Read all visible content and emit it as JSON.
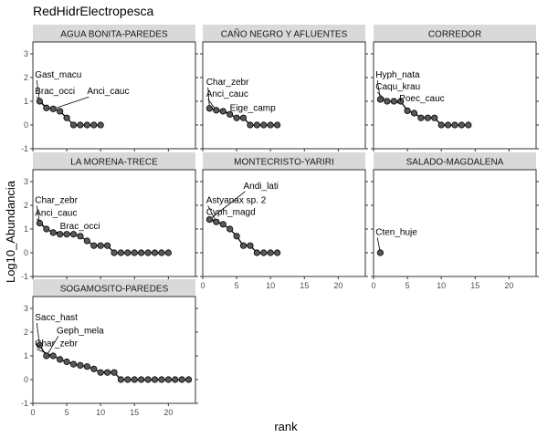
{
  "chart_data": {
    "type": "line",
    "title": "RedHidrElectropesca",
    "xlabel": "rank",
    "ylabel": "Log10_Abundancia",
    "xlim": [
      0,
      24
    ],
    "ylim": [
      -1,
      3.5
    ],
    "xticks": [
      0,
      5,
      10,
      15,
      20
    ],
    "yticks": [
      -1,
      0,
      1,
      2,
      3
    ],
    "grid": false,
    "colors": {
      "point": "#595959",
      "line": "#000000",
      "strip": "#d9d9d9"
    },
    "panels": [
      {
        "name": "AGUA BONITA-PAREDES",
        "x": [
          1,
          2,
          3,
          4,
          5,
          6,
          7,
          8,
          9,
          10
        ],
        "y": [
          1.0,
          0.72,
          0.68,
          0.58,
          0.3,
          0,
          0,
          0,
          0,
          0
        ],
        "labels": [
          {
            "text": "Gast_macu",
            "x": 1,
            "y": 1.0,
            "lx": 0.3,
            "ly": 2.0
          },
          {
            "text": "Brac_occi",
            "x": 2,
            "y": 0.72,
            "lx": 0.3,
            "ly": 1.3
          },
          {
            "text": "Anci_cauc",
            "x": 3,
            "y": 0.68,
            "lx": 8.0,
            "ly": 1.3
          }
        ]
      },
      {
        "name": "CAÑO NEGRO Y AFLUENTES",
        "x": [
          1,
          2,
          3,
          4,
          5,
          6,
          7,
          8,
          9,
          10,
          11
        ],
        "y": [
          0.7,
          0.62,
          0.58,
          0.45,
          0.3,
          0.3,
          0,
          0,
          0,
          0,
          0
        ],
        "labels": [
          {
            "text": "Char_zebr",
            "x": 1,
            "y": 0.7,
            "lx": 0.5,
            "ly": 1.7
          },
          {
            "text": "Anci_cauc",
            "x": 2,
            "y": 0.62,
            "lx": 0.5,
            "ly": 1.2
          },
          {
            "text": "Eige_camp",
            "x": 3,
            "y": 0.58,
            "lx": 4.0,
            "ly": 0.6
          }
        ]
      },
      {
        "name": "CORREDOR",
        "x": [
          1,
          2,
          3,
          4,
          5,
          6,
          7,
          8,
          9,
          10,
          11,
          12,
          13,
          14
        ],
        "y": [
          1.08,
          1.0,
          1.0,
          1.0,
          0.6,
          0.5,
          0.3,
          0.3,
          0.3,
          0,
          0,
          0,
          0,
          0
        ],
        "labels": [
          {
            "text": "Hyph_nata",
            "x": 1,
            "y": 1.08,
            "lx": 0.3,
            "ly": 2.0
          },
          {
            "text": "Caqu_krau",
            "x": 2,
            "y": 1.0,
            "lx": 0.3,
            "ly": 1.5
          },
          {
            "text": "Poec_cauc",
            "x": 3,
            "y": 1.0,
            "lx": 3.8,
            "ly": 1.0
          }
        ]
      },
      {
        "name": "LA MORENA-TRECE",
        "x": [
          1,
          2,
          3,
          4,
          5,
          6,
          7,
          8,
          9,
          10,
          11,
          12,
          13,
          14,
          15,
          16,
          17,
          18,
          19,
          20
        ],
        "y": [
          1.25,
          1.0,
          0.85,
          0.78,
          0.78,
          0.78,
          0.7,
          0.5,
          0.3,
          0.3,
          0.3,
          0,
          0,
          0,
          0,
          0,
          0,
          0,
          0,
          0
        ],
        "labels": [
          {
            "text": "Char_zebr",
            "x": 1,
            "y": 1.25,
            "lx": 0.3,
            "ly": 2.1
          },
          {
            "text": "Anci_cauc",
            "x": 2,
            "y": 1.0,
            "lx": 0.3,
            "ly": 1.55
          },
          {
            "text": "Brac_occi",
            "x": 3,
            "y": 0.85,
            "lx": 4.0,
            "ly": 1.0
          }
        ]
      },
      {
        "name": "MONTECRISTO-YARIRI",
        "x": [
          1,
          2,
          3,
          4,
          5,
          6,
          7,
          8,
          9,
          10,
          11
        ],
        "y": [
          1.4,
          1.3,
          1.2,
          1.0,
          0.7,
          0.3,
          0.3,
          0,
          0,
          0,
          0
        ],
        "labels": [
          {
            "text": "Andi_lati",
            "x": 1,
            "y": 1.4,
            "lx": 6.0,
            "ly": 2.7
          },
          {
            "text": "Astyanax sp. 2",
            "x": 2,
            "y": 1.3,
            "lx": 0.5,
            "ly": 2.1
          },
          {
            "text": "Cyph_magd",
            "x": 3,
            "y": 1.2,
            "lx": 0.5,
            "ly": 1.6
          }
        ]
      },
      {
        "name": "SALADO-MAGDALENA",
        "x": [
          1
        ],
        "y": [
          0
        ],
        "labels": [
          {
            "text": "Cten_huje",
            "x": 1,
            "y": 0,
            "lx": 0.3,
            "ly": 0.75
          }
        ]
      },
      {
        "name": "SOGAMOSITO-PAREDES",
        "x": [
          1,
          2,
          3,
          4,
          5,
          6,
          7,
          8,
          9,
          10,
          11,
          12,
          13,
          14,
          15,
          16,
          17,
          18,
          19,
          20,
          21,
          22,
          23
        ],
        "y": [
          1.45,
          1.0,
          1.0,
          0.85,
          0.75,
          0.65,
          0.6,
          0.55,
          0.45,
          0.3,
          0.3,
          0.3,
          0,
          0,
          0,
          0,
          0,
          0,
          0,
          0,
          0,
          0,
          0
        ],
        "labels": [
          {
            "text": "Sacc_hast",
            "x": 1,
            "y": 1.45,
            "lx": 0.3,
            "ly": 2.5
          },
          {
            "text": "Geph_mela",
            "x": 2,
            "y": 1.0,
            "lx": 3.5,
            "ly": 1.95
          },
          {
            "text": "Char_zebr",
            "x": 3,
            "y": 1.0,
            "lx": 0.3,
            "ly": 1.4
          }
        ]
      }
    ]
  }
}
